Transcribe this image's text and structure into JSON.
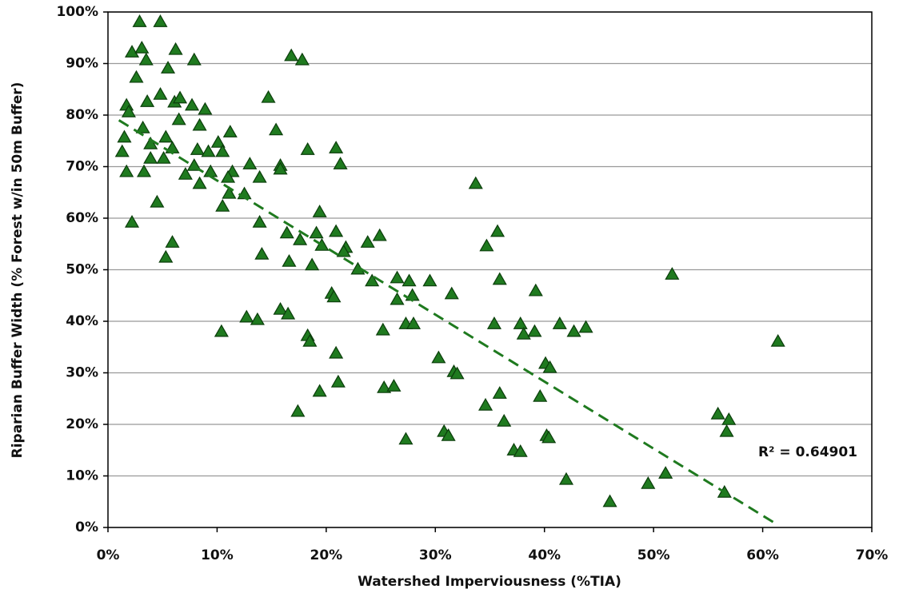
{
  "chart_data": {
    "type": "scatter",
    "xlabel": "Watershed Imperviousness (%TIA)",
    "ylabel": "Riparian Buffer Width (% Forest w/in 50m Buffer)",
    "annotation": "R² = 0.64901",
    "color": "#1f7a1f",
    "grid": true,
    "xlim": [
      0,
      70
    ],
    "ylim": [
      0,
      100
    ],
    "xticks": [
      {
        "value": 0,
        "label": "0%"
      },
      {
        "value": 10,
        "label": "10%"
      },
      {
        "value": 20,
        "label": "20%"
      },
      {
        "value": 30,
        "label": "30%"
      },
      {
        "value": 40,
        "label": "40%"
      },
      {
        "value": 50,
        "label": "50%"
      },
      {
        "value": 60,
        "label": "60%"
      },
      {
        "value": 70,
        "label": "70%"
      }
    ],
    "yticks": [
      {
        "value": 0,
        "label": "0%"
      },
      {
        "value": 10,
        "label": "10%"
      },
      {
        "value": 20,
        "label": "20%"
      },
      {
        "value": 30,
        "label": "30%"
      },
      {
        "value": 40,
        "label": "40%"
      },
      {
        "value": 50,
        "label": "50%"
      },
      {
        "value": 60,
        "label": "60%"
      },
      {
        "value": 70,
        "label": "70%"
      },
      {
        "value": 80,
        "label": "80%"
      },
      {
        "value": 90,
        "label": "90%"
      },
      {
        "value": 100,
        "label": "100%"
      }
    ],
    "x": [
      2.9,
      4.8,
      2.2,
      3.1,
      3.5,
      6.2,
      7.9,
      16.8,
      17.8,
      2.6,
      5.5,
      4.8,
      3.6,
      1.7,
      1.9,
      6.1,
      6.6,
      7.7,
      8.9,
      14.7,
      6.5,
      8.4,
      3.2,
      11.2,
      15.4,
      1.5,
      3.9,
      5.3,
      5.9,
      8.2,
      9.2,
      10.1,
      10.5,
      1.3,
      3.9,
      5.1,
      7.9,
      7.1,
      1.7,
      3.3,
      9.4,
      11.4,
      11,
      13,
      13.9,
      15.8,
      15.8,
      18.3,
      20.9,
      21.3,
      8.4,
      11.1,
      12.5,
      4.5,
      10.5,
      2.2,
      13.9,
      19.4,
      16.4,
      17.6,
      19.1,
      20.9,
      24.9,
      35.7,
      5.9,
      19.6,
      21.8,
      23.8,
      34.7,
      5.3,
      14.1,
      16.6,
      18.7,
      22.9,
      21.6,
      33.7,
      24.2,
      26.5,
      27.6,
      29.5,
      35.9,
      51.7,
      31.5,
      39.2,
      27.9,
      26.5,
      20.5,
      20.7,
      12.7,
      13.7,
      15.8,
      16.5,
      10.4,
      25.2,
      27.3,
      28,
      35.4,
      37.8,
      38.1,
      39.1,
      41.4,
      42.7,
      43.8,
      18.3,
      18.5,
      61.4,
      20.9,
      30.3,
      40.1,
      40.5,
      31.7,
      32,
      21.1,
      25.3,
      26.2,
      19.4,
      35.9,
      39.6,
      34.6,
      17.4,
      55.9,
      56.9,
      36.3,
      30.8,
      31.2,
      40.2,
      40.4,
      27.3,
      56.7,
      37.2,
      37.8,
      42,
      51.1,
      49.5,
      56.5,
      46
    ],
    "values": [
      98.1,
      98.1,
      92.2,
      93,
      90.7,
      92.7,
      90.7,
      91.5,
      90.7,
      87.3,
      89.1,
      84,
      82.6,
      81.9,
      80.6,
      82.5,
      83.3,
      81.9,
      81.1,
      83.4,
      79.1,
      78,
      77.5,
      76.7,
      77.1,
      75.7,
      74.4,
      75.7,
      73.6,
      73.3,
      72.9,
      74.7,
      72.9,
      72.9,
      71.6,
      71.6,
      70.2,
      68.5,
      69,
      69,
      69,
      69,
      67.9,
      70.5,
      67.9,
      70.2,
      69.5,
      73.3,
      73.6,
      70.5,
      66.7,
      64.8,
      64.7,
      63.1,
      62.3,
      59.2,
      59.2,
      61.2,
      57.1,
      55.8,
      57.1,
      57.4,
      56.6,
      57.4,
      55.3,
      54.7,
      54.3,
      55.3,
      54.6,
      52.4,
      53,
      51.6,
      50.9,
      50.1,
      53.5,
      66.7,
      47.8,
      48.4,
      47.8,
      47.8,
      48.1,
      49.1,
      45.3,
      45.9,
      45,
      44.2,
      45.4,
      44.7,
      40.8,
      40.3,
      42.3,
      41.4,
      38,
      38.3,
      39.5,
      39.5,
      39.5,
      39.5,
      37.5,
      38,
      39.5,
      38,
      38.8,
      37.2,
      36.1,
      36.1,
      33.8,
      32.9,
      31.8,
      31,
      30.2,
      29.8,
      28.2,
      27.1,
      27.4,
      26.4,
      26,
      25.4,
      23.7,
      22.5,
      22,
      20.9,
      20.6,
      18.6,
      17.8,
      17.8,
      17.4,
      17.1,
      18.6,
      15,
      14.7,
      9.3,
      10.5,
      8.5,
      6.8,
      5
    ],
    "trendline": {
      "x": [
        1,
        61
      ],
      "values": [
        79,
        1
      ],
      "color": "#1f7a1f"
    }
  }
}
